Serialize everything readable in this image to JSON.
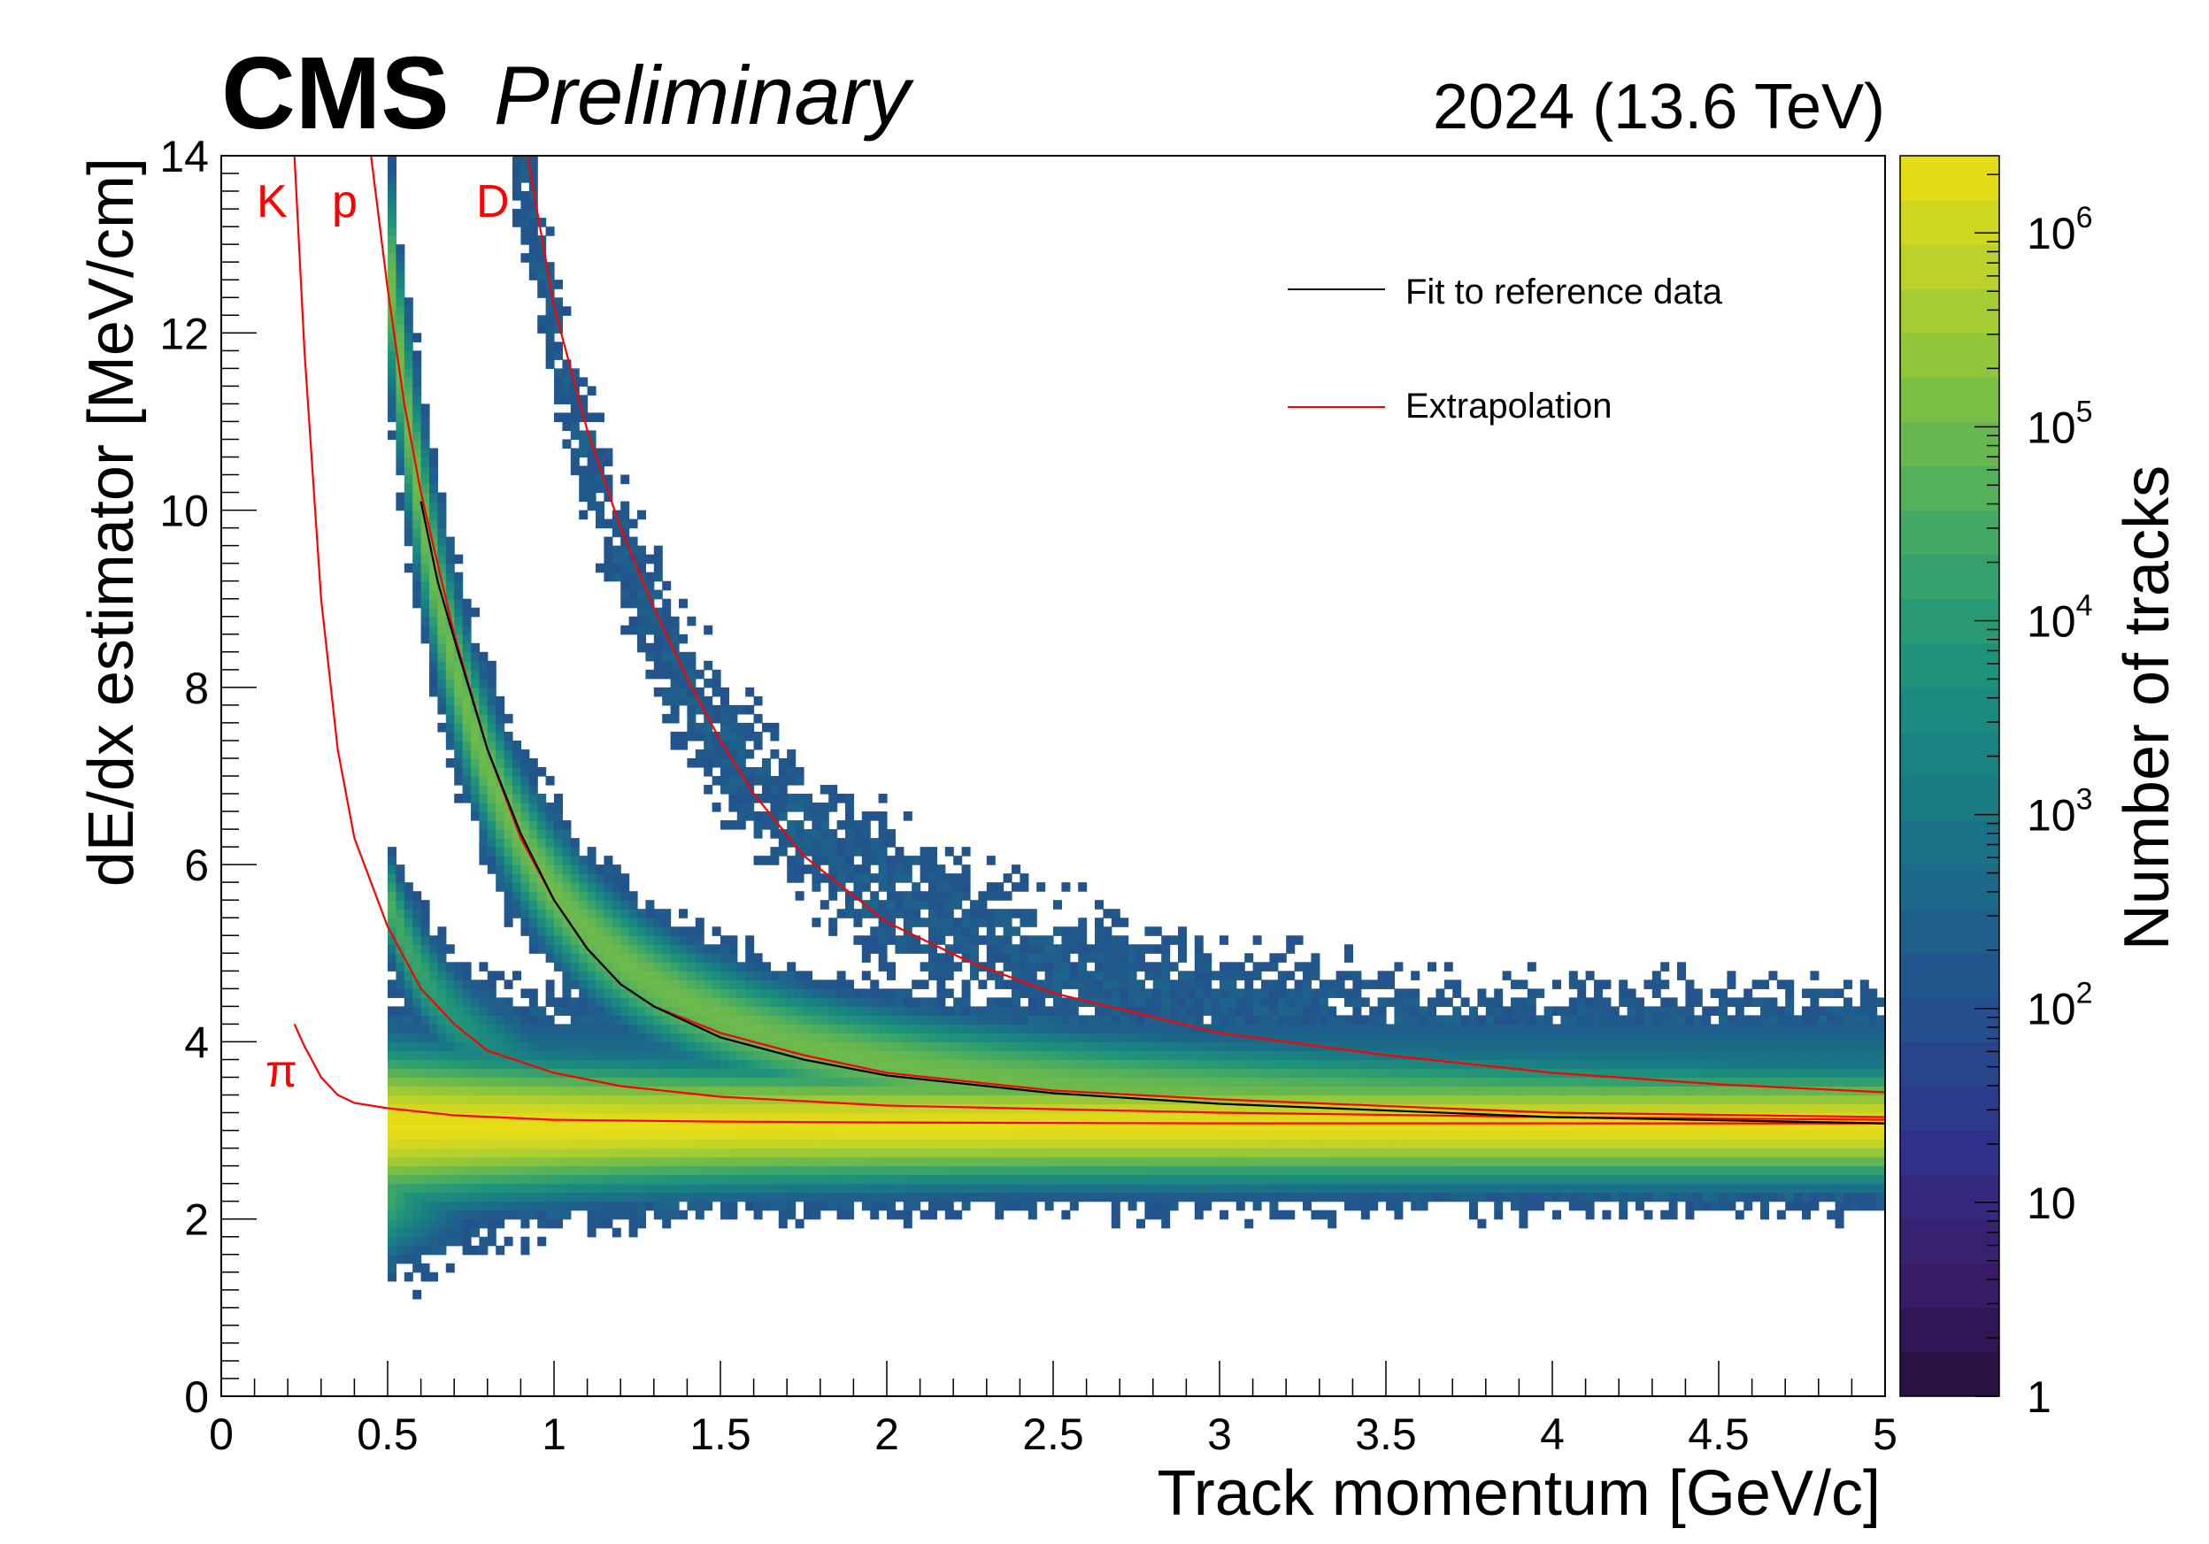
{
  "header": {
    "experiment": "CMS",
    "status": "Preliminary",
    "dataset": "2024 (13.6 TeV)"
  },
  "colors": {
    "extrapolation": "#ff0000",
    "fit": "#000000",
    "frame": "#000000"
  },
  "chart_data": {
    "type": "heatmap",
    "xlabel": "Track momentum [GeV/c]",
    "ylabel": "dE/dx estimator [MeV/cm]",
    "zlabel": "Number of tracks",
    "xlim": [
      0,
      5
    ],
    "ylim": [
      0,
      14
    ],
    "zlim": [
      1,
      2500000
    ],
    "zscale": "log",
    "colormap": "viridis",
    "x_ticks": [
      "0",
      "0.5",
      "1",
      "1.5",
      "2",
      "2.5",
      "3",
      "3.5",
      "4",
      "4.5",
      "5"
    ],
    "y_ticks": [
      "0",
      "2",
      "4",
      "6",
      "8",
      "10",
      "12",
      "14"
    ],
    "z_ticks": [
      {
        "value": 1,
        "label": "1"
      },
      {
        "value": 10,
        "label": "10"
      },
      {
        "value": 100,
        "label": "10",
        "exp": "2"
      },
      {
        "value": 1000,
        "label": "10",
        "exp": "3"
      },
      {
        "value": 10000,
        "label": "10",
        "exp": "4"
      },
      {
        "value": 100000,
        "label": "10",
        "exp": "5"
      },
      {
        "value": 1000000,
        "label": "10",
        "exp": "6"
      }
    ],
    "legend": {
      "placement": "top-right",
      "entries": [
        {
          "label": "Fit to reference data",
          "color": "#000000"
        },
        {
          "label": "Extrapolation",
          "color": "#ff0000"
        }
      ]
    },
    "curve_labels": [
      {
        "text": "K",
        "particle": "kaon"
      },
      {
        "text": "p",
        "particle": "proton"
      },
      {
        "text": "D",
        "particle": "deuteron"
      },
      {
        "text": "π",
        "particle": "pion"
      }
    ],
    "bands": [
      {
        "name": "pion",
        "x_min": 0.5,
        "x_max": 5,
        "dedx": 3.05,
        "width": 0.55
      },
      {
        "name": "kaon",
        "x_min": 0.5,
        "x_max": 1.3,
        "dedx_at_0_5": 5.6,
        "width": 0.45
      },
      {
        "name": "proton",
        "x_min": 0.5,
        "x_max": 5,
        "dedx_at_0_6": 10.1,
        "width": 0.9
      },
      {
        "name": "deuteron",
        "x_min": 0.85,
        "x_max": 5,
        "dedx_at_1_0": 12.1,
        "width": 1.2
      }
    ],
    "curves": [
      {
        "name": "pion",
        "role": "Extrapolation",
        "color": "#ff0000",
        "points": [
          [
            0.22,
            4.2
          ],
          [
            0.25,
            3.95
          ],
          [
            0.3,
            3.6
          ],
          [
            0.35,
            3.4
          ],
          [
            0.4,
            3.31
          ],
          [
            0.5,
            3.25
          ],
          [
            0.7,
            3.17
          ],
          [
            1,
            3.12
          ],
          [
            1.5,
            3.1
          ],
          [
            2,
            3.09
          ],
          [
            3,
            3.08
          ],
          [
            4,
            3.08
          ],
          [
            5,
            3.08
          ]
        ]
      },
      {
        "name": "kaon",
        "role": "Extrapolation",
        "color": "#ff0000",
        "points": [
          [
            0.22,
            14
          ],
          [
            0.25,
            11.8
          ],
          [
            0.3,
            9.0
          ],
          [
            0.35,
            7.3
          ],
          [
            0.4,
            6.3
          ],
          [
            0.5,
            5.3
          ],
          [
            0.6,
            4.6
          ],
          [
            0.7,
            4.2
          ],
          [
            0.8,
            3.9
          ],
          [
            1.0,
            3.65
          ],
          [
            1.2,
            3.5
          ],
          [
            1.5,
            3.38
          ],
          [
            2,
            3.28
          ],
          [
            3,
            3.2
          ],
          [
            4,
            3.15
          ],
          [
            5,
            3.12
          ]
        ]
      },
      {
        "name": "proton",
        "role": "Extrapolation",
        "color": "#ff0000",
        "points": [
          [
            0.45,
            14
          ],
          [
            0.5,
            12.5
          ],
          [
            0.55,
            11.2
          ],
          [
            0.6,
            10.2
          ],
          [
            0.7,
            8.6
          ],
          [
            0.8,
            7.3
          ],
          [
            0.9,
            6.3
          ],
          [
            1.0,
            5.6
          ],
          [
            1.1,
            5.05
          ],
          [
            1.2,
            4.65
          ],
          [
            1.3,
            4.4
          ],
          [
            1.5,
            4.1
          ],
          [
            1.75,
            3.85
          ],
          [
            2,
            3.65
          ],
          [
            2.5,
            3.45
          ],
          [
            3,
            3.35
          ],
          [
            4,
            3.2
          ],
          [
            5,
            3.15
          ]
        ]
      },
      {
        "name": "proton",
        "role": "Fit to reference data",
        "color": "#000000",
        "points": [
          [
            0.6,
            10.1
          ],
          [
            0.65,
            9.2
          ],
          [
            0.7,
            8.55
          ],
          [
            0.8,
            7.3
          ],
          [
            0.9,
            6.35
          ],
          [
            1.0,
            5.6
          ],
          [
            1.1,
            5.05
          ],
          [
            1.2,
            4.65
          ],
          [
            1.3,
            4.4
          ],
          [
            1.5,
            4.05
          ],
          [
            1.75,
            3.8
          ],
          [
            2,
            3.62
          ],
          [
            2.5,
            3.42
          ],
          [
            3,
            3.3
          ],
          [
            4,
            3.15
          ],
          [
            5,
            3.08
          ]
        ]
      },
      {
        "name": "deuteron",
        "role": "Extrapolation",
        "color": "#ff0000",
        "points": [
          [
            0.92,
            14
          ],
          [
            1.0,
            12.3
          ],
          [
            1.1,
            10.9
          ],
          [
            1.2,
            9.8
          ],
          [
            1.3,
            8.9
          ],
          [
            1.4,
            8.1
          ],
          [
            1.5,
            7.4
          ],
          [
            1.6,
            6.8
          ],
          [
            1.75,
            6.1
          ],
          [
            2,
            5.35
          ],
          [
            2.25,
            4.9
          ],
          [
            2.5,
            4.55
          ],
          [
            3,
            4.1
          ],
          [
            3.5,
            3.85
          ],
          [
            4,
            3.65
          ],
          [
            4.5,
            3.52
          ],
          [
            5,
            3.43
          ]
        ]
      }
    ],
    "grid": false
  }
}
